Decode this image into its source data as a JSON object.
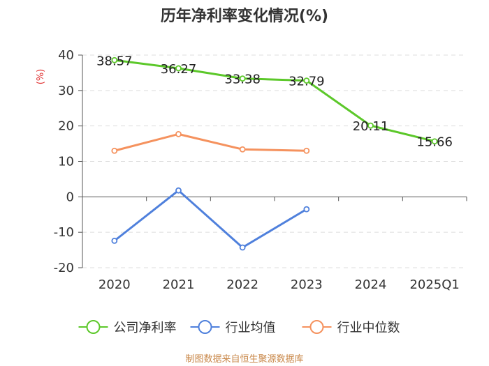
{
  "chart_data": {
    "type": "line",
    "title": "历年净利率变化情况(%)",
    "ylabel": "(%)",
    "categories": [
      "2020",
      "2021",
      "2022",
      "2023",
      "2024",
      "2025Q1"
    ],
    "ylim": [
      -20,
      40
    ],
    "yticks": [
      -20,
      -10,
      0,
      10,
      20,
      30,
      40
    ],
    "ytick_labels": [
      "-20",
      "-10",
      "0",
      "10",
      "20",
      "30",
      "40"
    ],
    "grid": true,
    "legend_position": "bottom",
    "series": [
      {
        "name": "公司净利率",
        "color": "#5cc82a",
        "values": [
          38.57,
          36.27,
          33.38,
          32.79,
          20.11,
          15.66
        ],
        "labels": [
          "38.57",
          "36.27",
          "33.38",
          "32.79",
          "20.11",
          "15.66"
        ]
      },
      {
        "name": "行业均值",
        "color": "#4f80dc",
        "values": [
          -12.4,
          1.8,
          -14.3,
          -3.5,
          null,
          null
        ]
      },
      {
        "name": "行业中位数",
        "color": "#f5925e",
        "values": [
          13.0,
          17.7,
          13.4,
          13.0,
          null,
          null
        ]
      }
    ]
  },
  "source_text": "制图数据来自恒生聚源数据库"
}
